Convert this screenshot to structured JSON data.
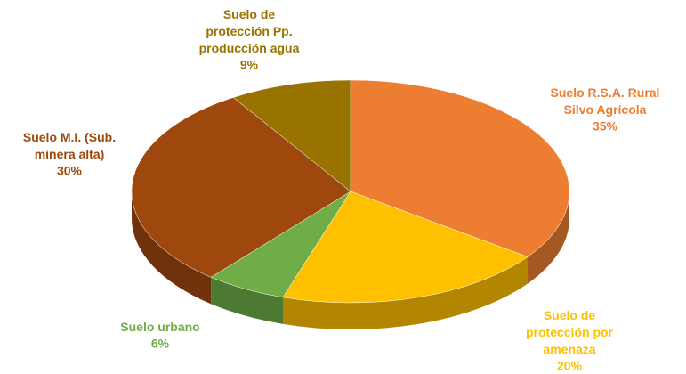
{
  "chart_data": {
    "type": "pie",
    "categories": [
      "Suelo R.S.A. Rural Silvo Agrícola",
      "Suelo de protección por amenaza",
      "Suelo urbano",
      "Suelo M.I. (Sub. minera alta)",
      "Suelo de protección Pp. producción agua"
    ],
    "values": [
      35,
      20,
      6,
      30,
      9
    ],
    "value_labels": [
      "35%",
      "20%",
      "6%",
      "30%",
      "9%"
    ],
    "colors": [
      "#ED7D31",
      "#FFC000",
      "#70AD47",
      "#9E480E",
      "#997300"
    ]
  }
}
